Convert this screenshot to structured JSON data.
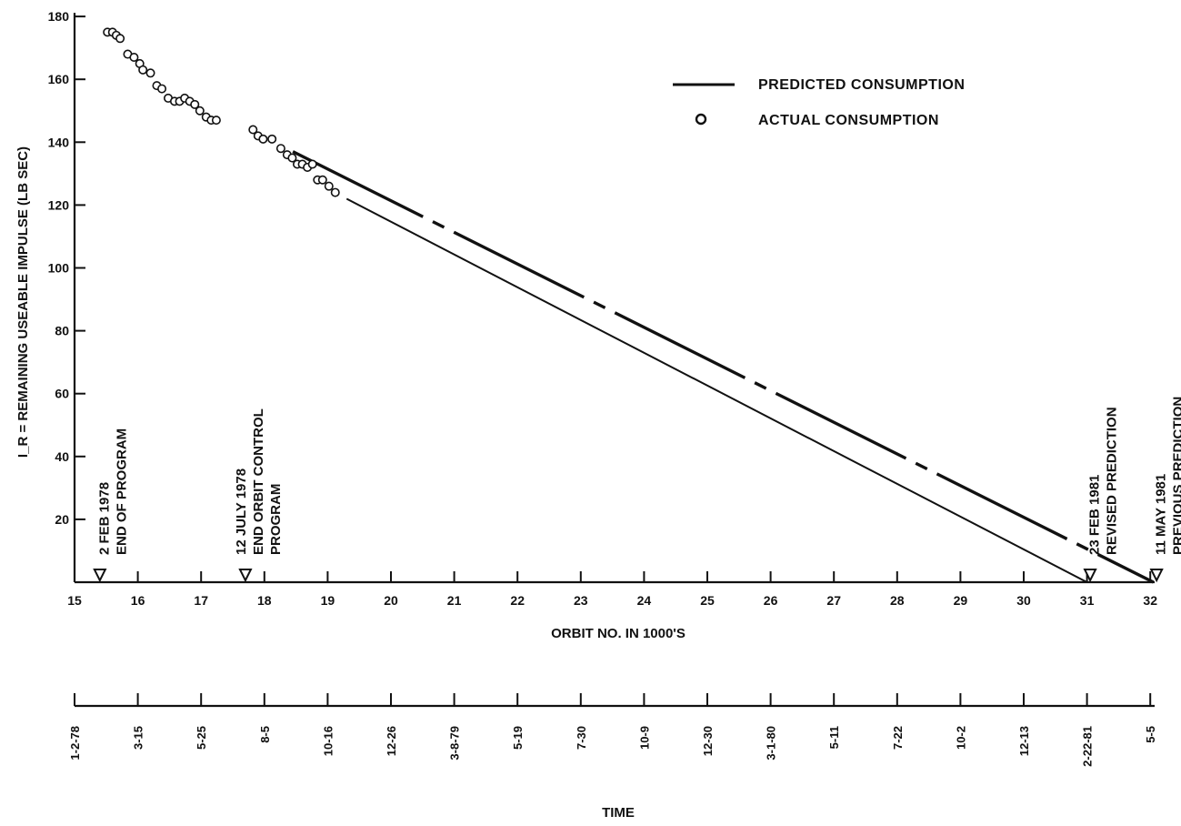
{
  "chart_data": {
    "type": "line",
    "title": "",
    "xlabel": "ORBIT NO. IN 1000'S",
    "ylabel": "I_R = REMAINING USEABLE IMPULSE (LB SEC)",
    "time_axis_label": "TIME",
    "xlim": [
      15,
      32.2
    ],
    "ylim": [
      0,
      180
    ],
    "x_ticks": [
      15,
      16,
      17,
      18,
      19,
      20,
      21,
      22,
      23,
      24,
      25,
      26,
      27,
      28,
      29,
      30,
      31,
      32
    ],
    "y_ticks": [
      20,
      40,
      60,
      80,
      100,
      120,
      140,
      160,
      180
    ],
    "legend": {
      "position": "top-right",
      "predicted_label": "PREDICTED CONSUMPTION",
      "actual_label": "ACTUAL CONSUMPTION"
    },
    "actual_consumption": {
      "x": [
        15.52,
        15.6,
        15.66,
        15.72,
        15.84,
        15.94,
        16.03,
        16.08,
        16.2,
        16.3,
        16.38,
        16.48,
        16.58,
        16.66,
        16.74,
        16.82,
        16.9,
        16.98,
        17.08,
        17.16,
        17.24,
        17.82,
        17.9,
        17.98,
        18.12,
        18.26,
        18.36,
        18.44,
        18.52,
        18.6,
        18.68,
        18.76,
        18.84,
        18.92,
        19.02,
        19.12
      ],
      "y": [
        175,
        175,
        174,
        173,
        168,
        167,
        165,
        163,
        162,
        158,
        157,
        154,
        153,
        153,
        154,
        153,
        152,
        150,
        148,
        147,
        147,
        144,
        142,
        141,
        141,
        138,
        136,
        135,
        133,
        133,
        132,
        133,
        128,
        128,
        126,
        124
      ]
    },
    "predicted_consumption": [
      {
        "name": "revised",
        "style": "solid",
        "x": [
          19.3,
          31.0
        ],
        "y": [
          122,
          0
        ]
      },
      {
        "name": "previous",
        "style": "long-dash",
        "x": [
          18.45,
          32.05
        ],
        "y": [
          137,
          0
        ]
      }
    ],
    "event_markers": [
      {
        "x": 15.4,
        "lines": [
          "2 FEB 1978",
          "END OF PROGRAM"
        ]
      },
      {
        "x": 17.7,
        "lines": [
          "12 JULY 1978",
          "END ORBIT CONTROL",
          "PROGRAM"
        ]
      },
      {
        "x": 31.05,
        "lines": [
          "23 FEB 1981",
          "REVISED PREDICTION"
        ]
      },
      {
        "x": 32.1,
        "lines": [
          "11 MAY 1981",
          "PREVIOUS PREDICTION"
        ]
      }
    ],
    "time_ticks": [
      "1-2-78",
      "3-15",
      "5-25",
      "8-5",
      "10-16",
      "12-26",
      "3-8-79",
      "5-19",
      "7-30",
      "10-9",
      "12-30",
      "3-1-80",
      "5-11",
      "7-22",
      "10-2",
      "12-13",
      "2-22-81",
      "5-5"
    ]
  }
}
